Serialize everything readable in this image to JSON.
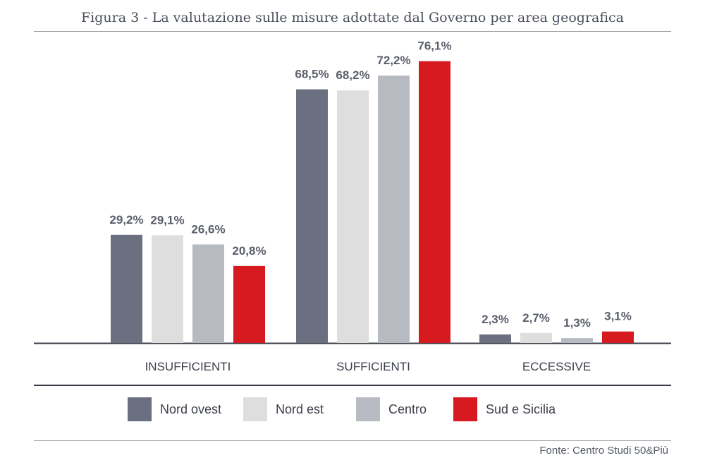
{
  "title": "Figura 3 - La valutazione sulle misure adottate dal Governo per area geografica",
  "source": "Fonte: Centro Studi 50&Più",
  "legend": [
    {
      "label": "Nord ovest",
      "color": "#6b7080"
    },
    {
      "label": "Nord est",
      "color": "#dedede"
    },
    {
      "label": "Centro",
      "color": "#b8bac2"
    },
    {
      "label": "Sud e Sicilia",
      "color": "#d71920"
    }
  ],
  "chart_data": {
    "type": "bar",
    "categories": [
      "INSUFFICIENTI",
      "SUFFICIENTI",
      "ECCESSIVE"
    ],
    "series": [
      {
        "name": "Nord ovest",
        "values": [
          29.2,
          68.5,
          2.3
        ],
        "labels": [
          "29,2%",
          "68,5%",
          "2,3%"
        ]
      },
      {
        "name": "Nord est",
        "values": [
          29.1,
          68.2,
          2.7
        ],
        "labels": [
          "29,1%",
          "68,2%",
          "2,7%"
        ]
      },
      {
        "name": "Centro",
        "values": [
          26.6,
          72.2,
          1.3
        ],
        "labels": [
          "26,6%",
          "72,2%",
          "1,3%"
        ]
      },
      {
        "name": "Sud e Sicilia",
        "values": [
          20.8,
          76.1,
          3.1
        ],
        "labels": [
          "20,8%",
          "76,1%",
          "3,1%"
        ]
      }
    ],
    "ylim": [
      0,
      85
    ],
    "grid": false,
    "legend_position": "bottom"
  }
}
